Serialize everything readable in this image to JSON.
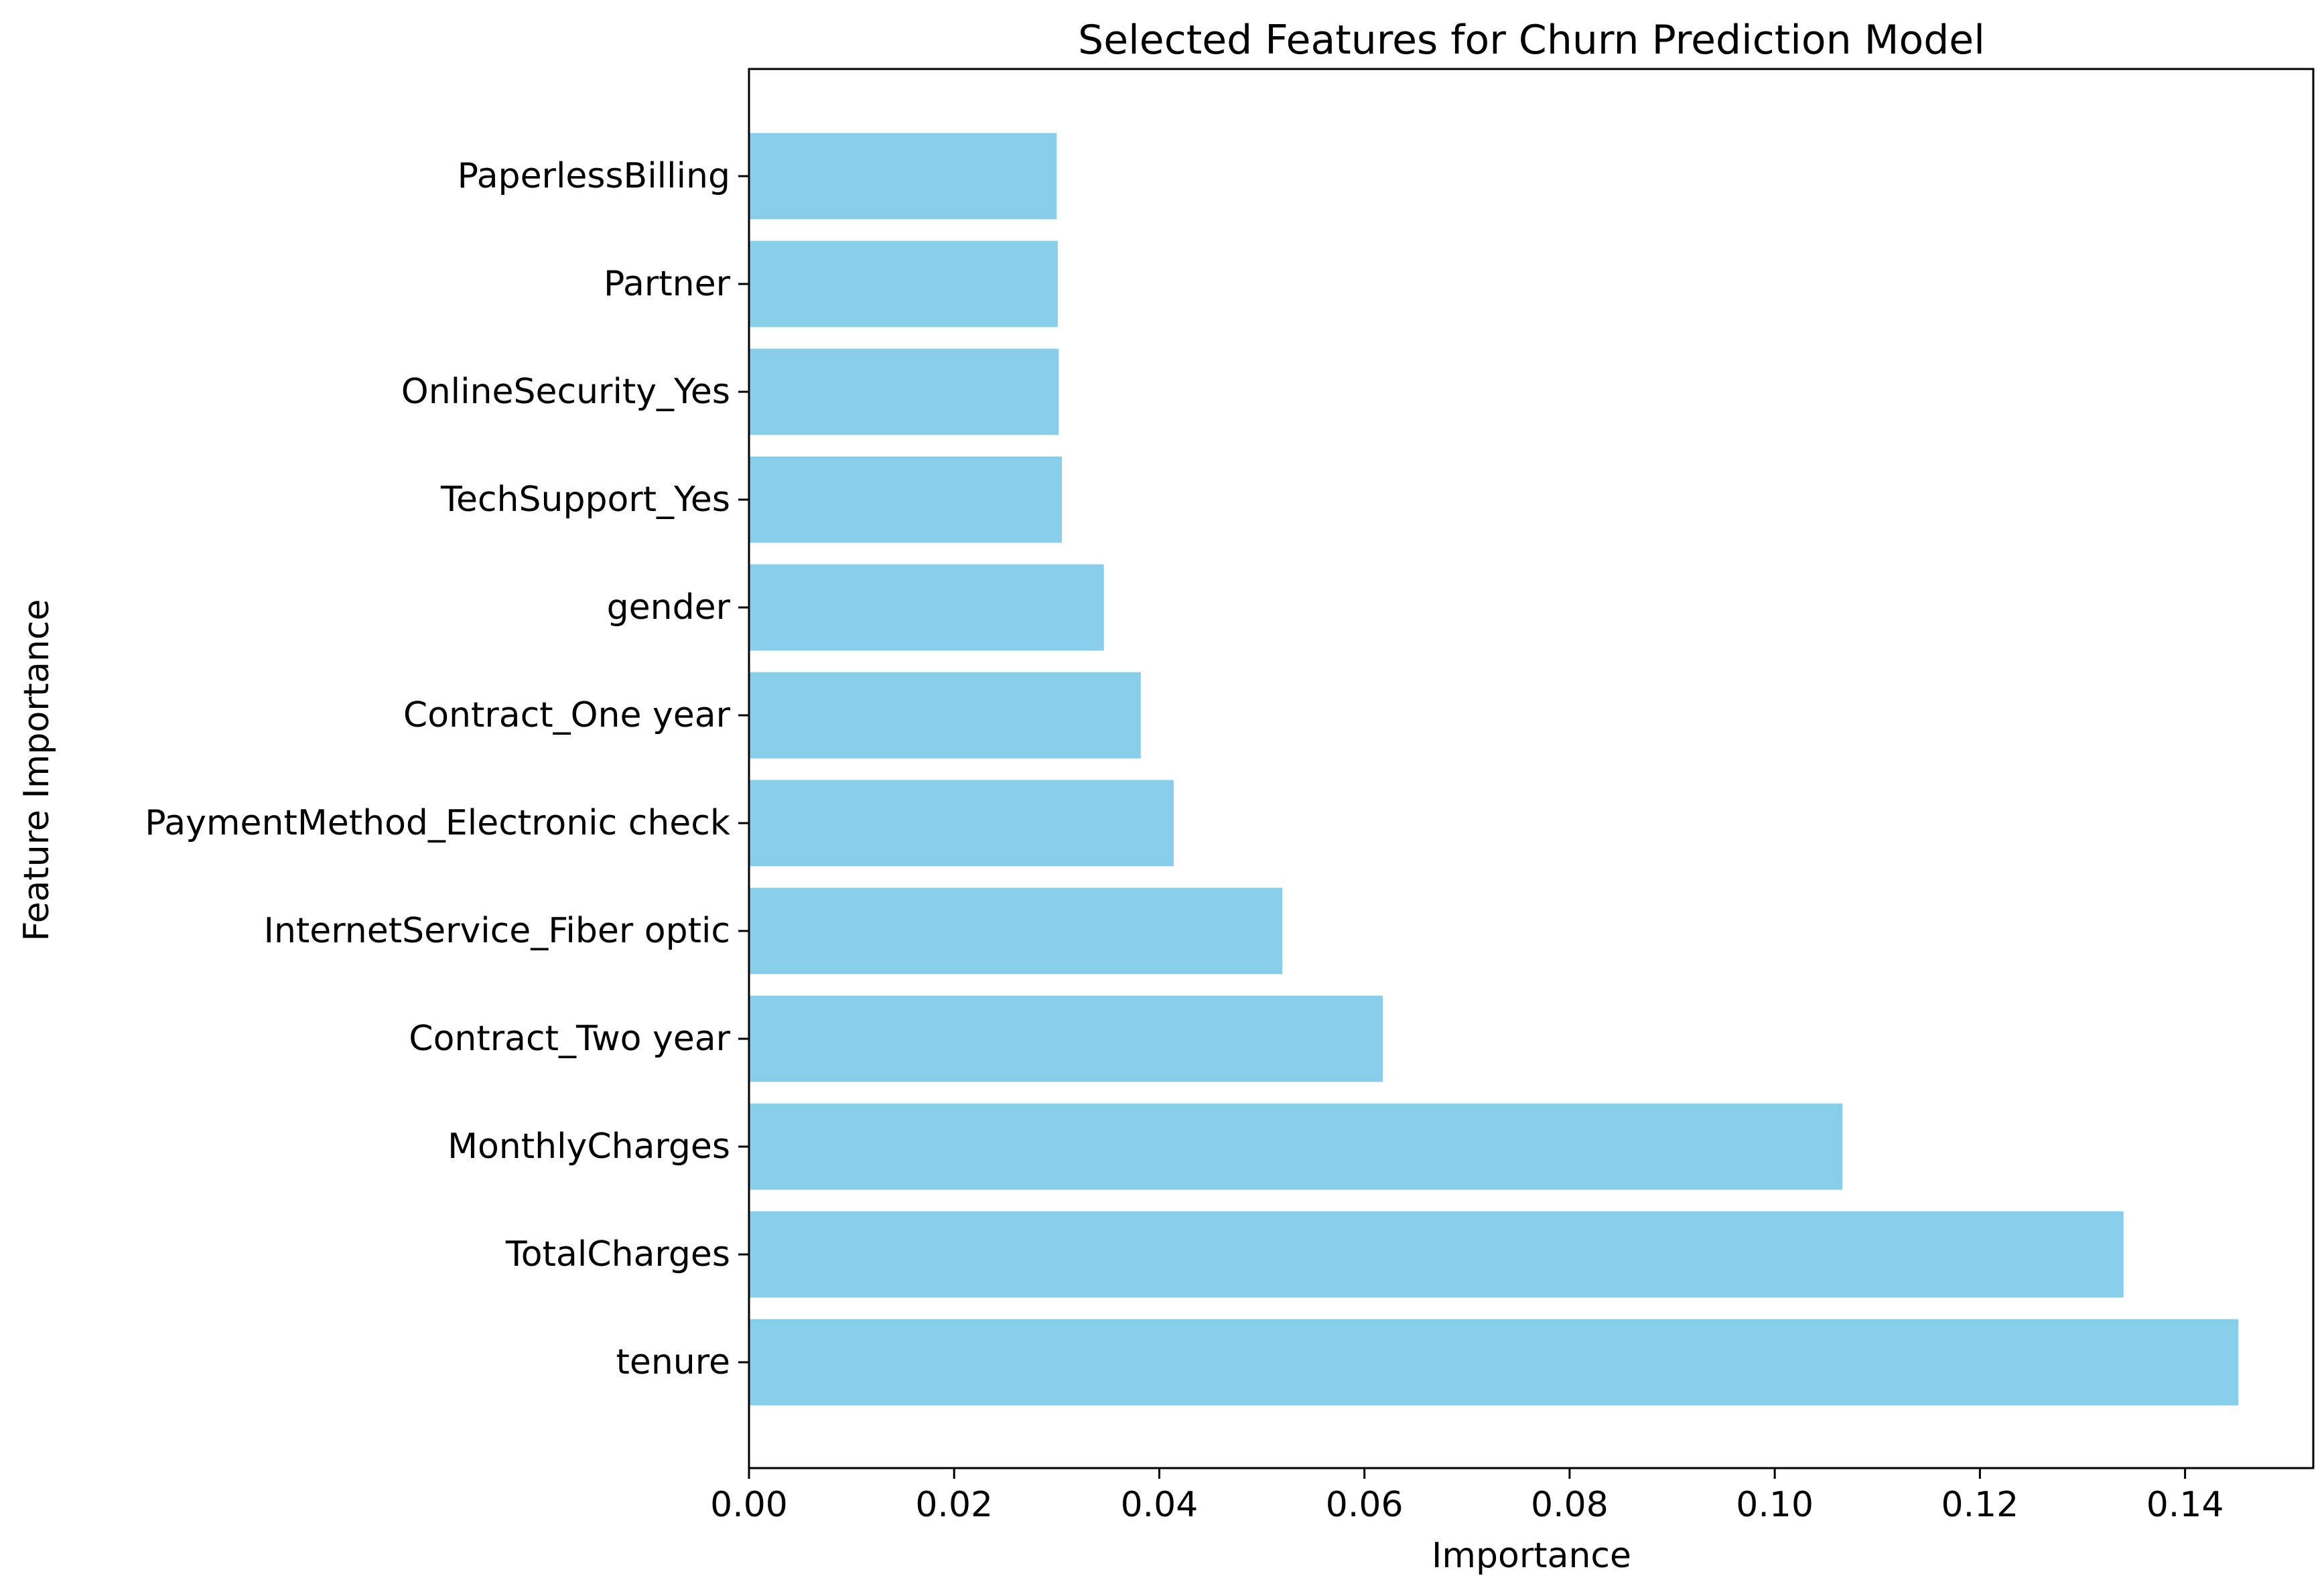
{
  "chart_data": {
    "type": "bar",
    "orientation": "horizontal",
    "title": "Selected Features for Churn Prediction Model",
    "xlabel": "Importance",
    "ylabel": "Feature Importance",
    "categories": [
      "tenure",
      "TotalCharges",
      "MonthlyCharges",
      "Contract_Two year",
      "InternetService_Fiber optic",
      "PaymentMethod_Electronic check",
      "Contract_One year",
      "gender",
      "TechSupport_Yes",
      "OnlineSecurity_Yes",
      "Partner",
      "PaperlessBilling"
    ],
    "values": [
      0.1452,
      0.134,
      0.1066,
      0.0618,
      0.052,
      0.0414,
      0.0382,
      0.0346,
      0.0305,
      0.0302,
      0.0301,
      0.03
    ],
    "xlim": [
      0,
      0.1525
    ],
    "xticks": [
      0.0,
      0.02,
      0.04,
      0.06,
      0.08,
      0.1,
      0.12,
      0.14
    ],
    "xtick_labels": [
      "0.00",
      "0.02",
      "0.04",
      "0.06",
      "0.08",
      "0.10",
      "0.12",
      "0.14"
    ],
    "bar_color": "#87ceeb",
    "grid": false,
    "legend": false
  }
}
